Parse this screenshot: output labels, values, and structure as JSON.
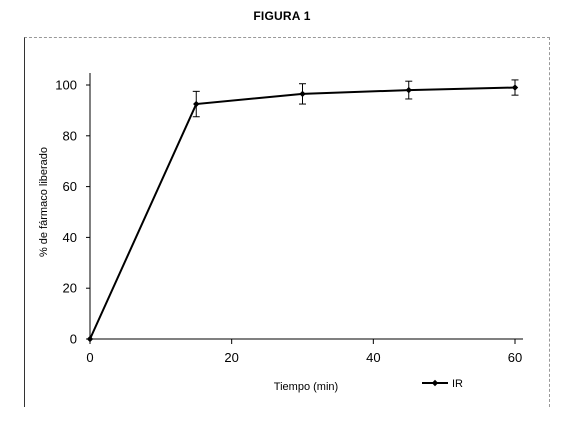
{
  "figure_title": "FIGURA 1",
  "chart_data": {
    "type": "line",
    "title": "",
    "xlabel": "Tiempo (min)",
    "ylabel": "% de fármaco liberado",
    "xlim": [
      0,
      60
    ],
    "ylim": [
      0,
      100
    ],
    "xticks": [
      0,
      20,
      40,
      60
    ],
    "yticks": [
      0,
      20,
      40,
      60,
      80,
      100
    ],
    "grid": false,
    "legend_position": "bottom-right",
    "series": [
      {
        "name": "IR",
        "color": "#000000",
        "marker": "diamond",
        "x": [
          0,
          15,
          30,
          45,
          60
        ],
        "y": [
          0,
          92.5,
          96.5,
          98,
          99
        ],
        "error": [
          0,
          5,
          4,
          3.5,
          3
        ]
      }
    ]
  }
}
